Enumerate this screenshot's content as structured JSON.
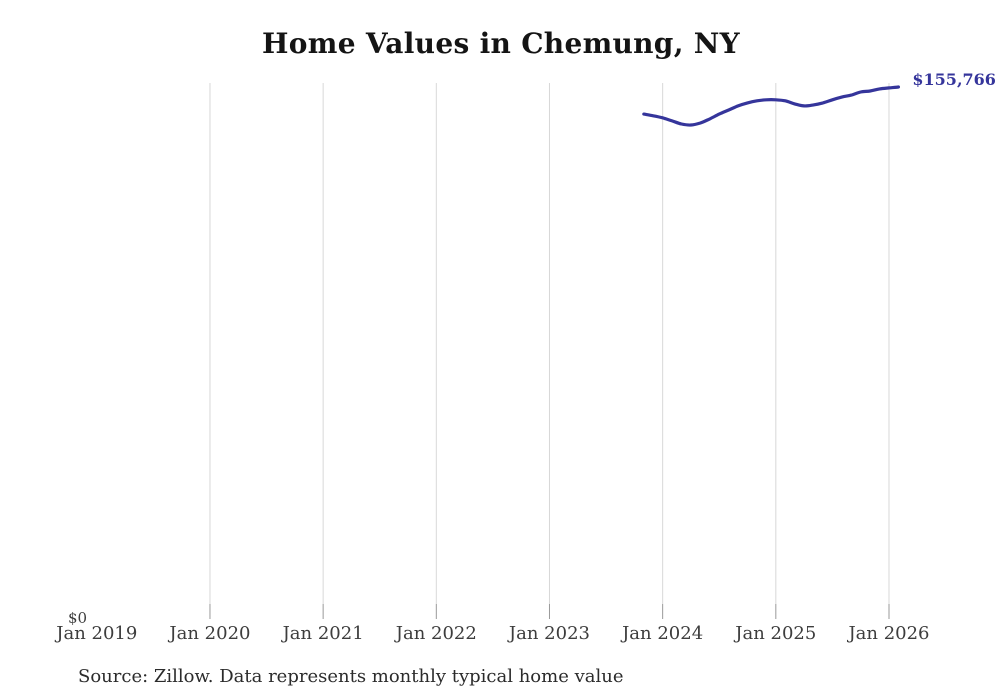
{
  "chart_data": {
    "type": "line",
    "title": "Home Values in Chemung, NY",
    "xlabel": "",
    "ylabel": "",
    "x_tick_labels": [
      "Jan 2019",
      "Jan 2020",
      "Jan 2021",
      "Jan 2022",
      "Jan 2023",
      "Jan 2024",
      "Jan 2025",
      "Jan 2026"
    ],
    "y_tick_labels": [
      "$0"
    ],
    "ylim": [
      0,
      160000
    ],
    "grid": "vertical-only",
    "legend": false,
    "end_label": "$155,766",
    "series": [
      {
        "name": "Monthly typical home value",
        "color": "#35359b",
        "months": [
          "2023-11",
          "2023-12",
          "2024-01",
          "2024-02",
          "2024-03",
          "2024-04",
          "2024-05",
          "2024-06",
          "2024-07",
          "2024-08",
          "2024-09",
          "2024-10",
          "2024-11",
          "2024-12",
          "2025-01",
          "2025-02",
          "2025-03",
          "2025-04",
          "2025-05",
          "2025-06",
          "2025-07",
          "2025-08",
          "2025-09",
          "2025-10",
          "2025-11",
          "2025-12",
          "2026-01",
          "2026-02"
        ],
        "values": [
          147800,
          147300,
          146700,
          145800,
          144900,
          144600,
          145200,
          146400,
          147800,
          149000,
          150200,
          151100,
          151700,
          152000,
          152000,
          151700,
          150800,
          150200,
          150500,
          151100,
          152000,
          152800,
          153400,
          154300,
          154600,
          155200,
          155500,
          155766
        ]
      }
    ]
  },
  "footer": {
    "source_note": "Source: Zillow. Data represents monthly typical home value"
  },
  "colors": {
    "line": "#35359b",
    "gridline": "#d8d8d8",
    "tick": "#999999",
    "axis_text": "#3d3d3d",
    "title_text": "#141414"
  }
}
